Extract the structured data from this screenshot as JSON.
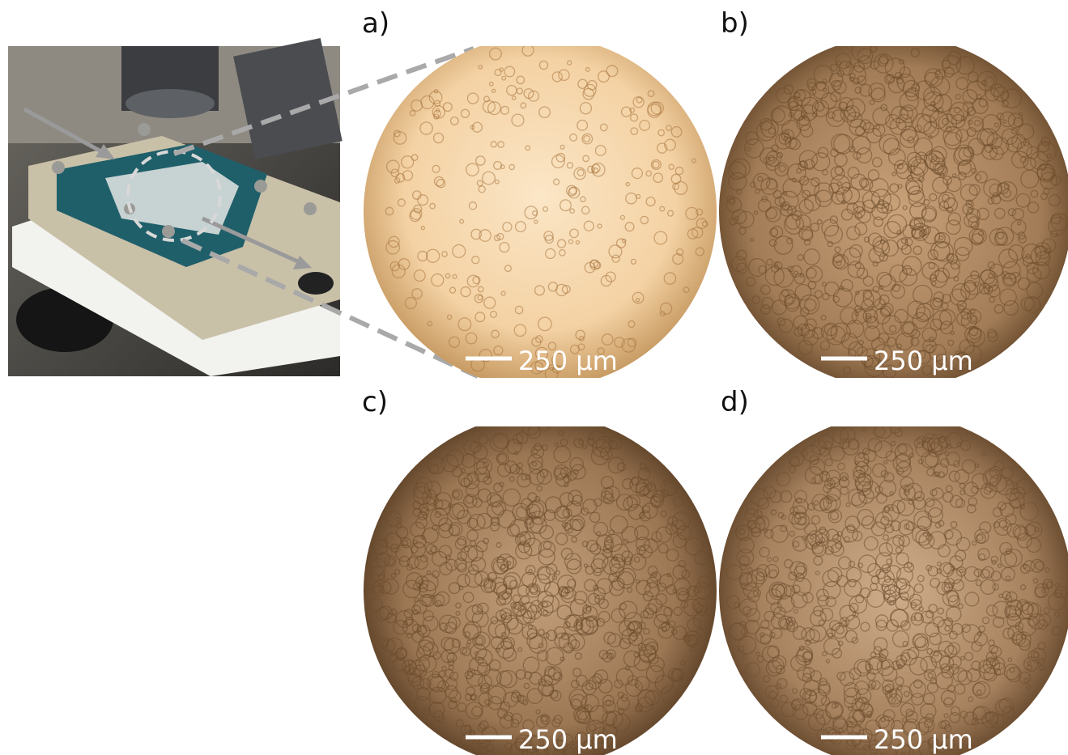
{
  "panels": [
    {
      "label": "a)",
      "scale_bar": "250 µm"
    },
    {
      "label": "b)",
      "scale_bar": "250 µm"
    },
    {
      "label": "c)",
      "scale_bar": "250 µm"
    },
    {
      "label": "d)",
      "scale_bar": "250 µm"
    }
  ]
}
